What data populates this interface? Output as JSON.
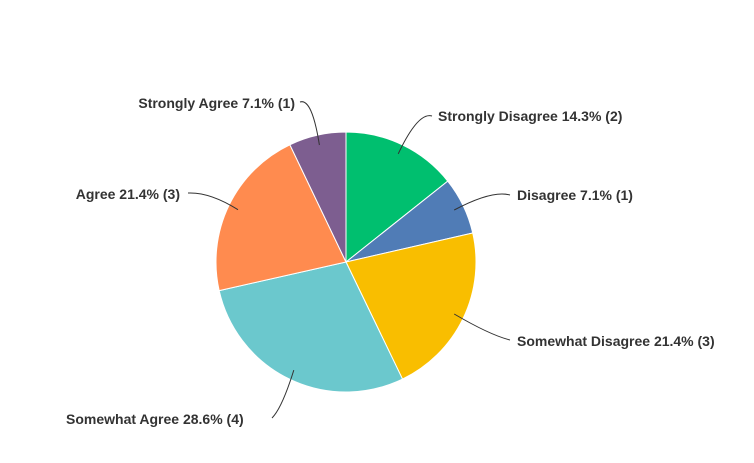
{
  "chart_data": {
    "type": "pie",
    "title": "",
    "start": "12 o'clock",
    "direction": "clockwise",
    "legend": "none",
    "slices": [
      {
        "category": "Strongly Disagree",
        "percent": 14.3,
        "count": 2,
        "label": "Strongly Disagree 14.3% (2)",
        "color": "#00bf6f"
      },
      {
        "category": "Disagree",
        "percent": 7.1,
        "count": 1,
        "label": "Disagree 7.1% (1)",
        "color": "#507cb6"
      },
      {
        "category": "Somewhat Disagree",
        "percent": 21.4,
        "count": 3,
        "label": "Somewhat Disagree 21.4% (3)",
        "color": "#f9be00"
      },
      {
        "category": "Somewhat Agree",
        "percent": 28.6,
        "count": 4,
        "label": "Somewhat Agree 28.6% (4)",
        "color": "#6bc8cd"
      },
      {
        "category": "Agree",
        "percent": 21.4,
        "count": 3,
        "label": "Agree 21.4% (3)",
        "color": "#ff8b4f"
      },
      {
        "category": "Strongly Agree",
        "percent": 7.1,
        "count": 1,
        "label": "Strongly Agree 7.1% (1)",
        "color": "#7d5e90"
      }
    ]
  }
}
